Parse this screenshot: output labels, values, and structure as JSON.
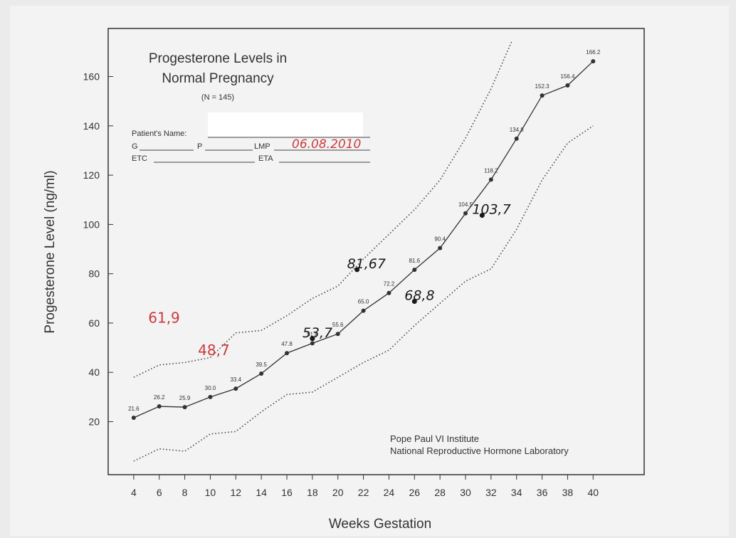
{
  "chart_data": {
    "type": "line",
    "title": [
      "Progesterone Levels in",
      "Normal Pregnancy"
    ],
    "subtitle": "(N = 145)",
    "x_label": "Weeks Gestation",
    "y_label": "Progesterone Level (ng/ml)",
    "form": {
      "patient_name": "Patient's Name:",
      "g": "G",
      "p": "P",
      "lmp": "LMP",
      "lmp_value": "06.08.2010",
      "etc": "ETC",
      "eta": "ETA"
    },
    "source": [
      "Pope Paul VI Institute",
      "National Reproductive Hormone Laboratory"
    ],
    "xlim": [
      2,
      44
    ],
    "ylim": [
      -1.5,
      179.5
    ],
    "xticks": [
      4,
      6,
      8,
      10,
      12,
      14,
      16,
      18,
      20,
      22,
      24,
      26,
      28,
      30,
      32,
      34,
      36,
      38,
      40
    ],
    "yticks": [
      20,
      40,
      60,
      80,
      100,
      120,
      140,
      160
    ],
    "series": [
      {
        "style": "solid",
        "markers": true,
        "color": "#333333",
        "x": [
          4,
          6,
          8,
          10,
          12,
          14,
          16,
          18,
          20,
          22,
          24,
          26,
          28,
          30,
          32,
          34,
          36,
          38,
          40
        ],
        "values": [
          21.6,
          26.2,
          25.9,
          30.0,
          33.4,
          39.5,
          47.8,
          51.8,
          55.6,
          65.0,
          72.2,
          81.6,
          90.4,
          104.5,
          118.2,
          134.8,
          152.3,
          156.4,
          166.2
        ],
        "value_labels": [
          "21.6",
          "26.2",
          "25.9",
          "30.0",
          "33.4",
          "39.5",
          "47.8",
          "51.8",
          "55.6",
          "65.0",
          "72.2",
          "81.6",
          "90.4",
          "104.5",
          "118.2",
          "134.8",
          "152.3",
          "156.4",
          "166.2"
        ]
      },
      {
        "style": "dotted",
        "markers": false,
        "color": "#444444",
        "x": [
          4,
          6,
          8,
          10,
          12,
          14,
          16,
          18,
          20,
          22,
          24,
          26,
          28,
          30,
          32,
          33.6
        ],
        "values": [
          38,
          43,
          44,
          46,
          56,
          57,
          63,
          70,
          75,
          86,
          96,
          106,
          118,
          135,
          155,
          174
        ]
      },
      {
        "style": "dotted",
        "markers": false,
        "color": "#444444",
        "x": [
          4,
          6,
          8,
          10,
          12,
          14,
          16,
          18,
          20,
          22,
          24,
          26,
          28,
          30,
          32,
          34,
          36,
          38,
          40
        ],
        "values": [
          4,
          9,
          8,
          15,
          16,
          24,
          31,
          32,
          38,
          44,
          49,
          59,
          68,
          77,
          82,
          98,
          118,
          133,
          140
        ]
      },
      {
        "style": "handwritten",
        "markers": true,
        "color": "#1a1a1a",
        "x": [
          18,
          21.5,
          26,
          31.3
        ],
        "values": [
          53.7,
          81.67,
          68.8,
          103.7
        ],
        "value_labels": [
          "53,7",
          "81,67",
          "68,8",
          "103,7"
        ]
      },
      {
        "style": "handwritten",
        "markers": false,
        "color": "#cc3b3b",
        "x": [
          6.7,
          10.6
        ],
        "values": [
          61.9,
          48.7
        ],
        "value_labels": [
          "61,9",
          "48,7"
        ]
      }
    ]
  }
}
